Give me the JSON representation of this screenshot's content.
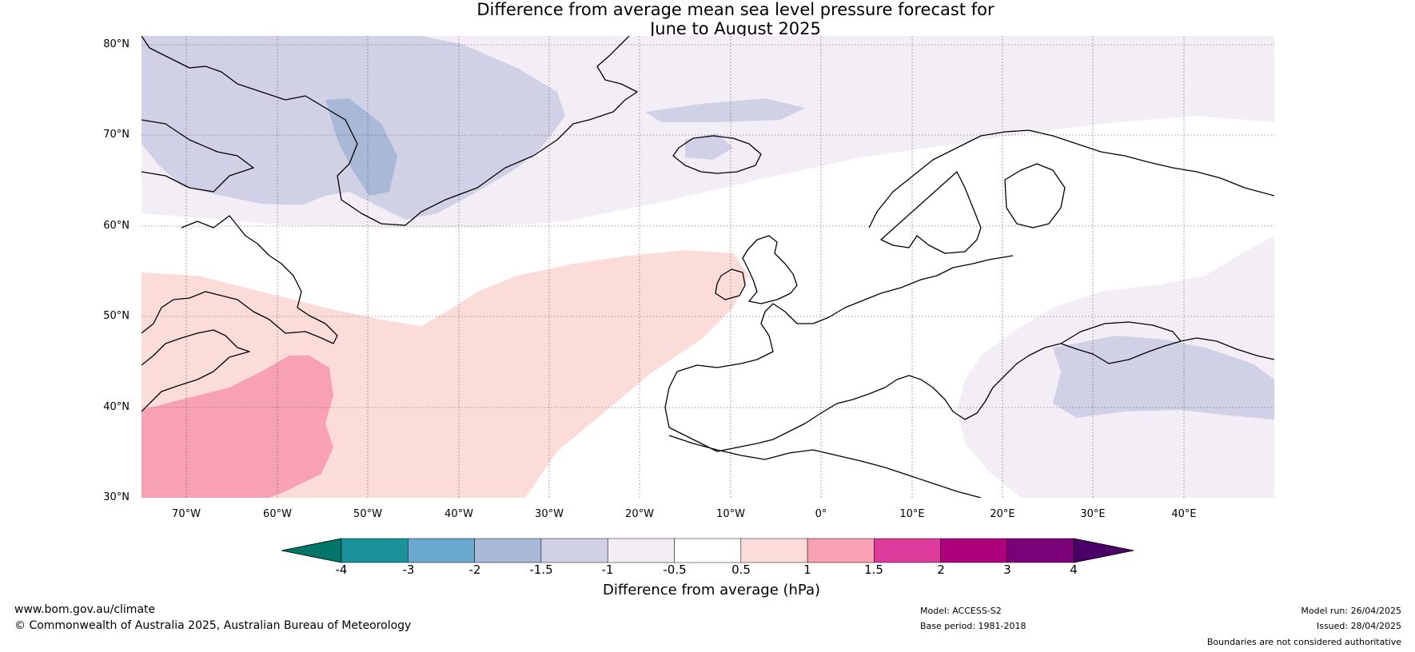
{
  "title": {
    "line1": "Difference from average mean sea level pressure forecast for",
    "line2": "June to August 2025"
  },
  "map": {
    "lat_labels": [
      "80°N",
      "70°N",
      "60°N",
      "50°N",
      "40°N",
      "30°N"
    ],
    "lon_labels": [
      "70°W",
      "60°W",
      "50°W",
      "40°W",
      "30°W",
      "20°W",
      "10°W",
      "0°",
      "10°E",
      "20°E",
      "30°E",
      "40°E"
    ],
    "extent": {
      "lon": [
        -75,
        50
      ],
      "lat": [
        30,
        81
      ]
    }
  },
  "legend": {
    "ticks": [
      "-4",
      "-3",
      "-2",
      "-1.5",
      "-1",
      "-0.5",
      "0.5",
      "1",
      "1.5",
      "2",
      "3",
      "4"
    ],
    "bins": [
      {
        "range": "-4 to -3",
        "color": "#1b9199"
      },
      {
        "range": "-3 to -2",
        "color": "#6aa8d0"
      },
      {
        "range": "-2 to -1.5",
        "color": "#a9b8d6"
      },
      {
        "range": "-1.5 to -1",
        "color": "#d0d1e6"
      },
      {
        "range": "-1 to -0.5",
        "color": "#f3eef6"
      },
      {
        "range": "-0.5 to 0.5",
        "color": "#ffffff"
      },
      {
        "range": "0.5 to 1",
        "color": "#fbdcd9"
      },
      {
        "range": "1 to 1.5",
        "color": "#f8a1b5"
      },
      {
        "range": "1.5 to 2",
        "color": "#dc3b9b"
      },
      {
        "range": "2 to 3",
        "color": "#ad017e"
      },
      {
        "range": "3 to 4",
        "color": "#7a0177"
      }
    ],
    "under_color": "#00756a",
    "over_color": "#4b0068",
    "label": "Difference from average (hPa)"
  },
  "footer": {
    "website": "www.bom.gov.au/climate",
    "copyright": "© Commonwealth of Australia 2025, Australian Bureau of Meteorology",
    "model": "Model: ACCESS-S2",
    "base_period": "Base period: 1981-2018",
    "model_run": "Model run: 26/04/2025",
    "issued": "Issued: 28/04/2025",
    "boundaries": "Boundaries are not considered authoritative"
  }
}
